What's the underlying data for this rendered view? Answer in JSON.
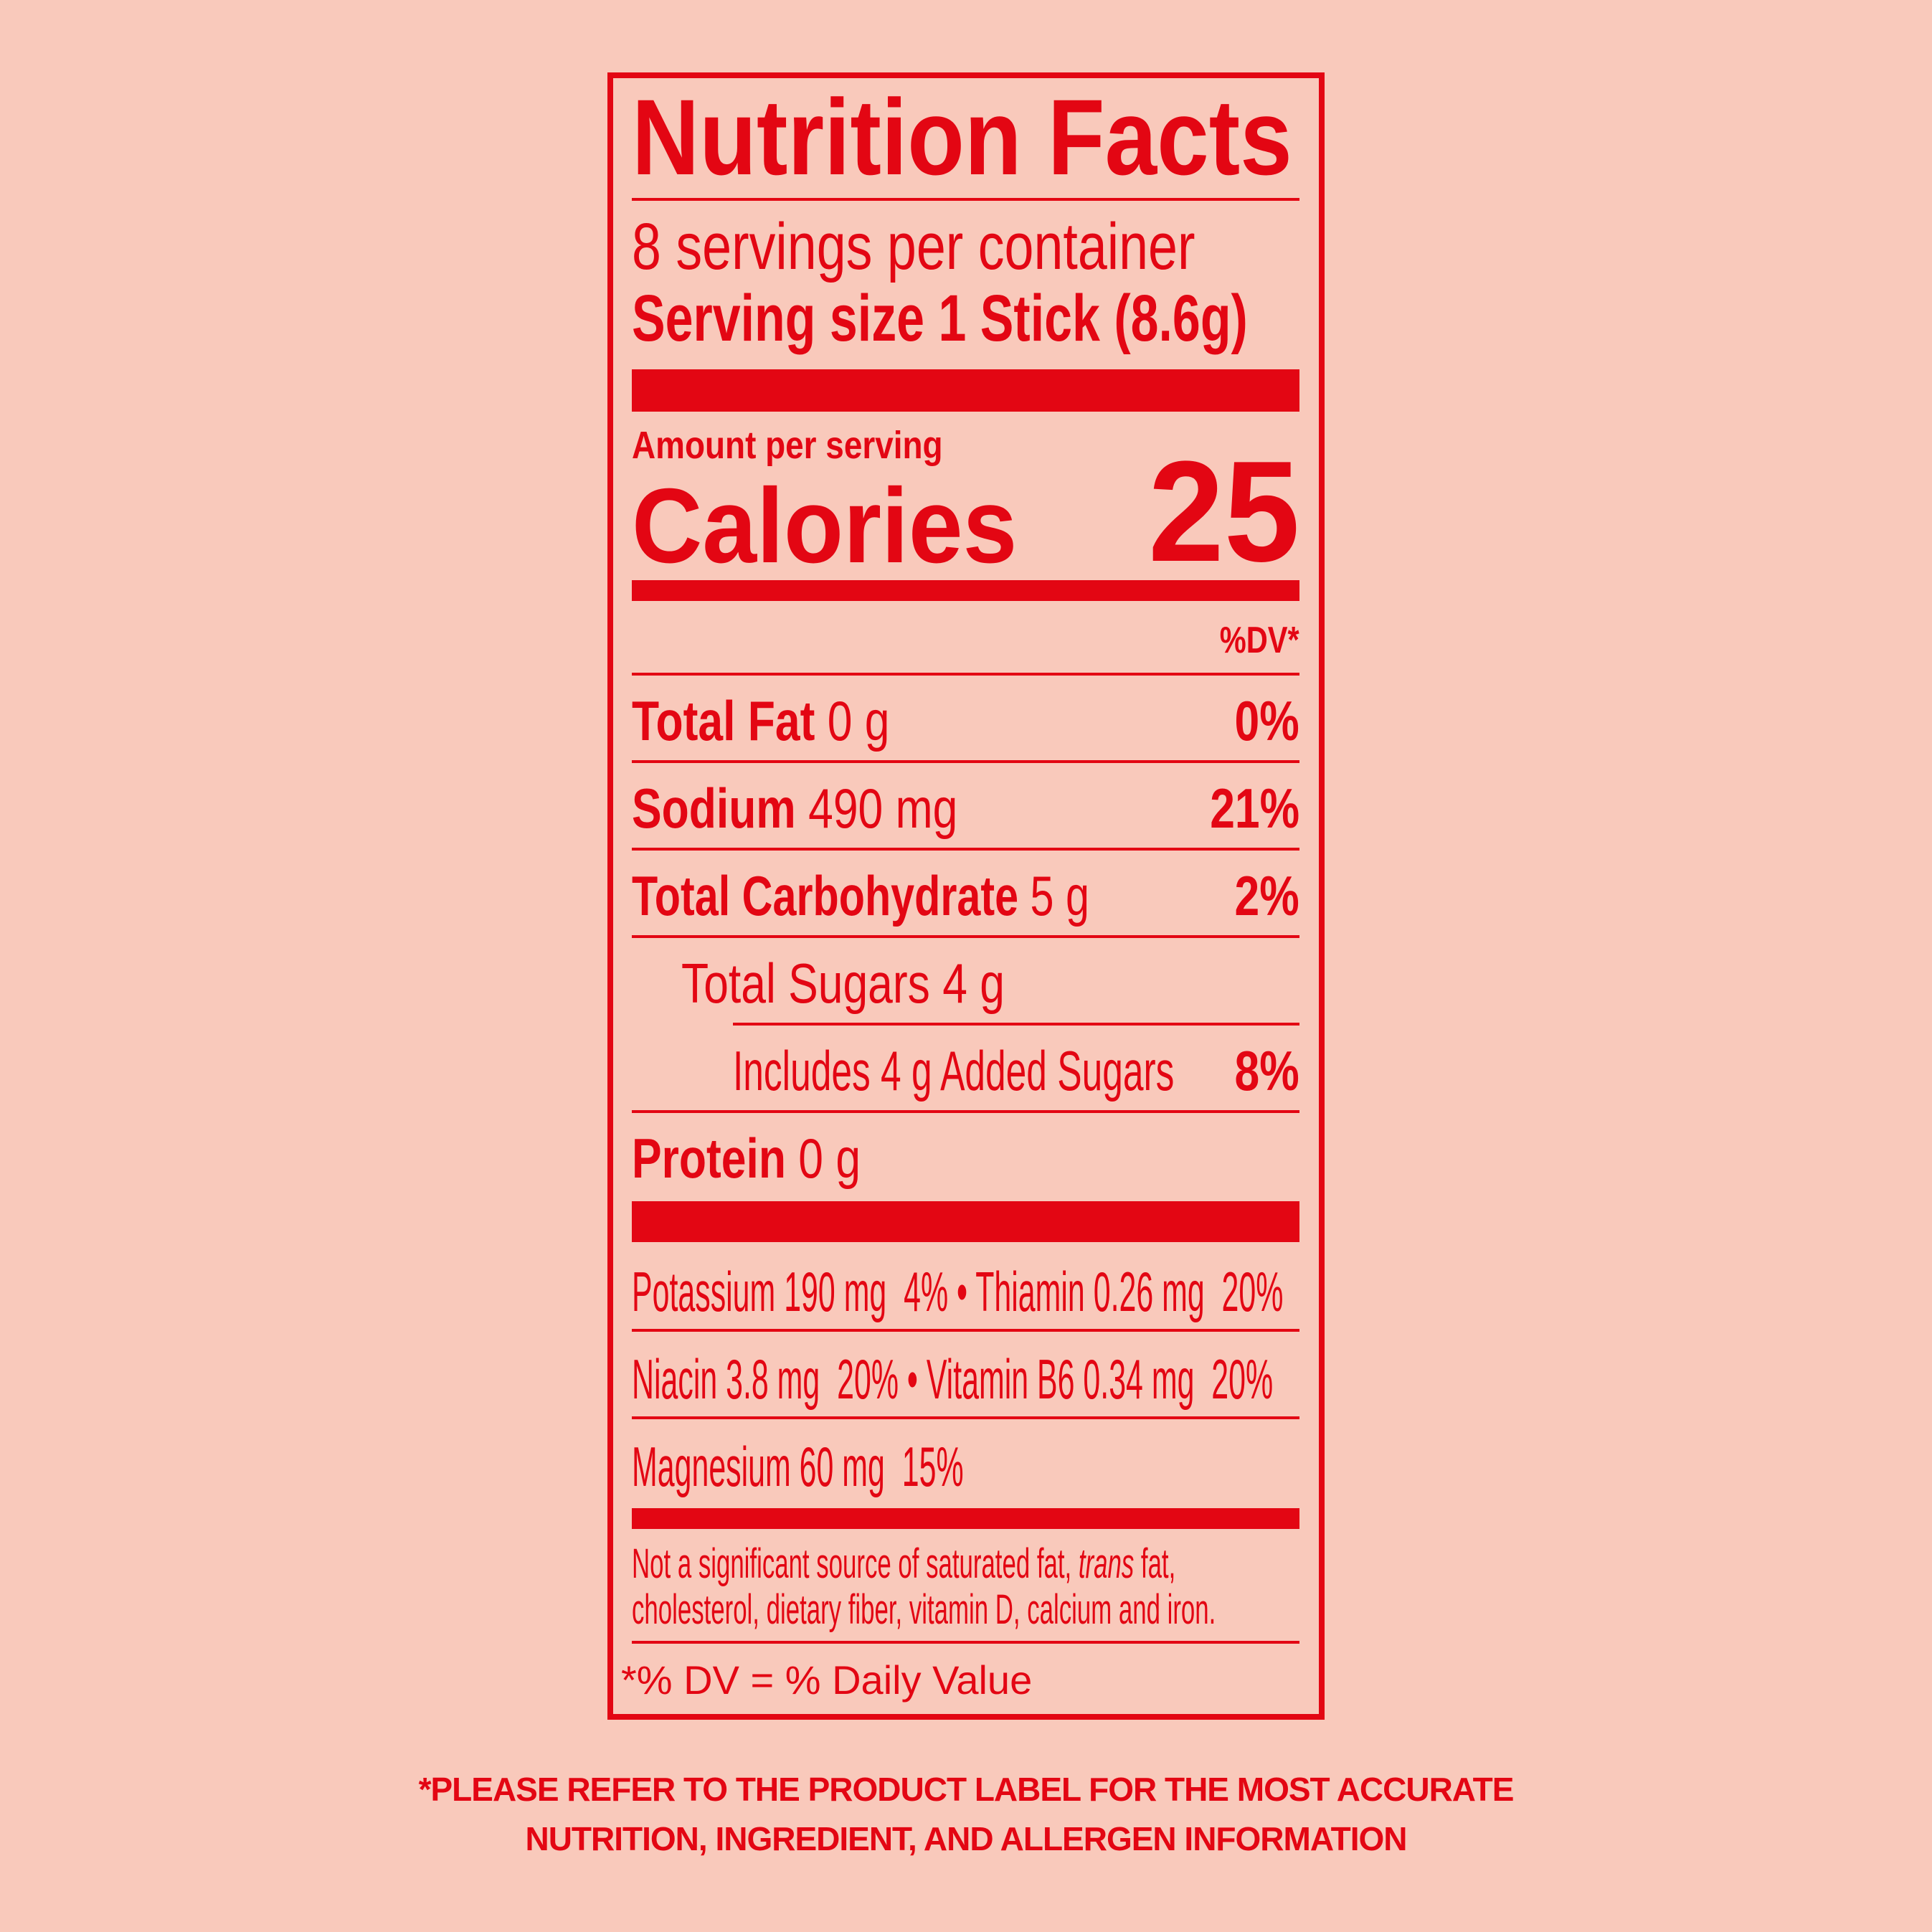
{
  "colors": {
    "background": "#f9c9bb",
    "accent": "#e30613"
  },
  "label": {
    "title": "Nutrition Facts",
    "servings": "8 servings per container",
    "serving_size_label": "Serving size",
    "serving_size_value": "1 Stick (8.6g)",
    "amount_per_serving": "Amount per serving",
    "calories_label": "Calories",
    "calories_value": "25",
    "dv_header": "%DV*",
    "nutrients": [
      {
        "name": "Total Fat",
        "amount": "0 g",
        "dv": "0%"
      },
      {
        "name": "Sodium",
        "amount": "490 mg",
        "dv": "21%"
      },
      {
        "name": "Total Carbohydrate",
        "amount": "5 g",
        "dv": "2%"
      },
      {
        "name": "Total Sugars 4 g"
      },
      {
        "name": "Includes 4 g Added Sugars",
        "dv": "8%"
      },
      {
        "name": "Protein",
        "amount": "0 g"
      }
    ],
    "vitamins": [
      "Potassium 190 mg  4% • Thiamin 0.26 mg  20%",
      "Niacin 3.8 mg  20% • Vitamin B6 0.34 mg  20%",
      "Magnesium 60 mg  15%"
    ],
    "footnote_part1": "Not a significant source of saturated fat, ",
    "footnote_italic": "trans",
    "footnote_part2": " fat,",
    "footnote_line2": "cholesterol, dietary fiber, vitamin D, calcium and iron.",
    "dv_definition": "*% DV = % Daily Value"
  },
  "disclaimer": {
    "line1": "*PLEASE REFER TO THE PRODUCT LABEL FOR THE MOST ACCURATE",
    "line2": "NUTRITION, INGREDIENT, AND ALLERGEN INFORMATION"
  }
}
